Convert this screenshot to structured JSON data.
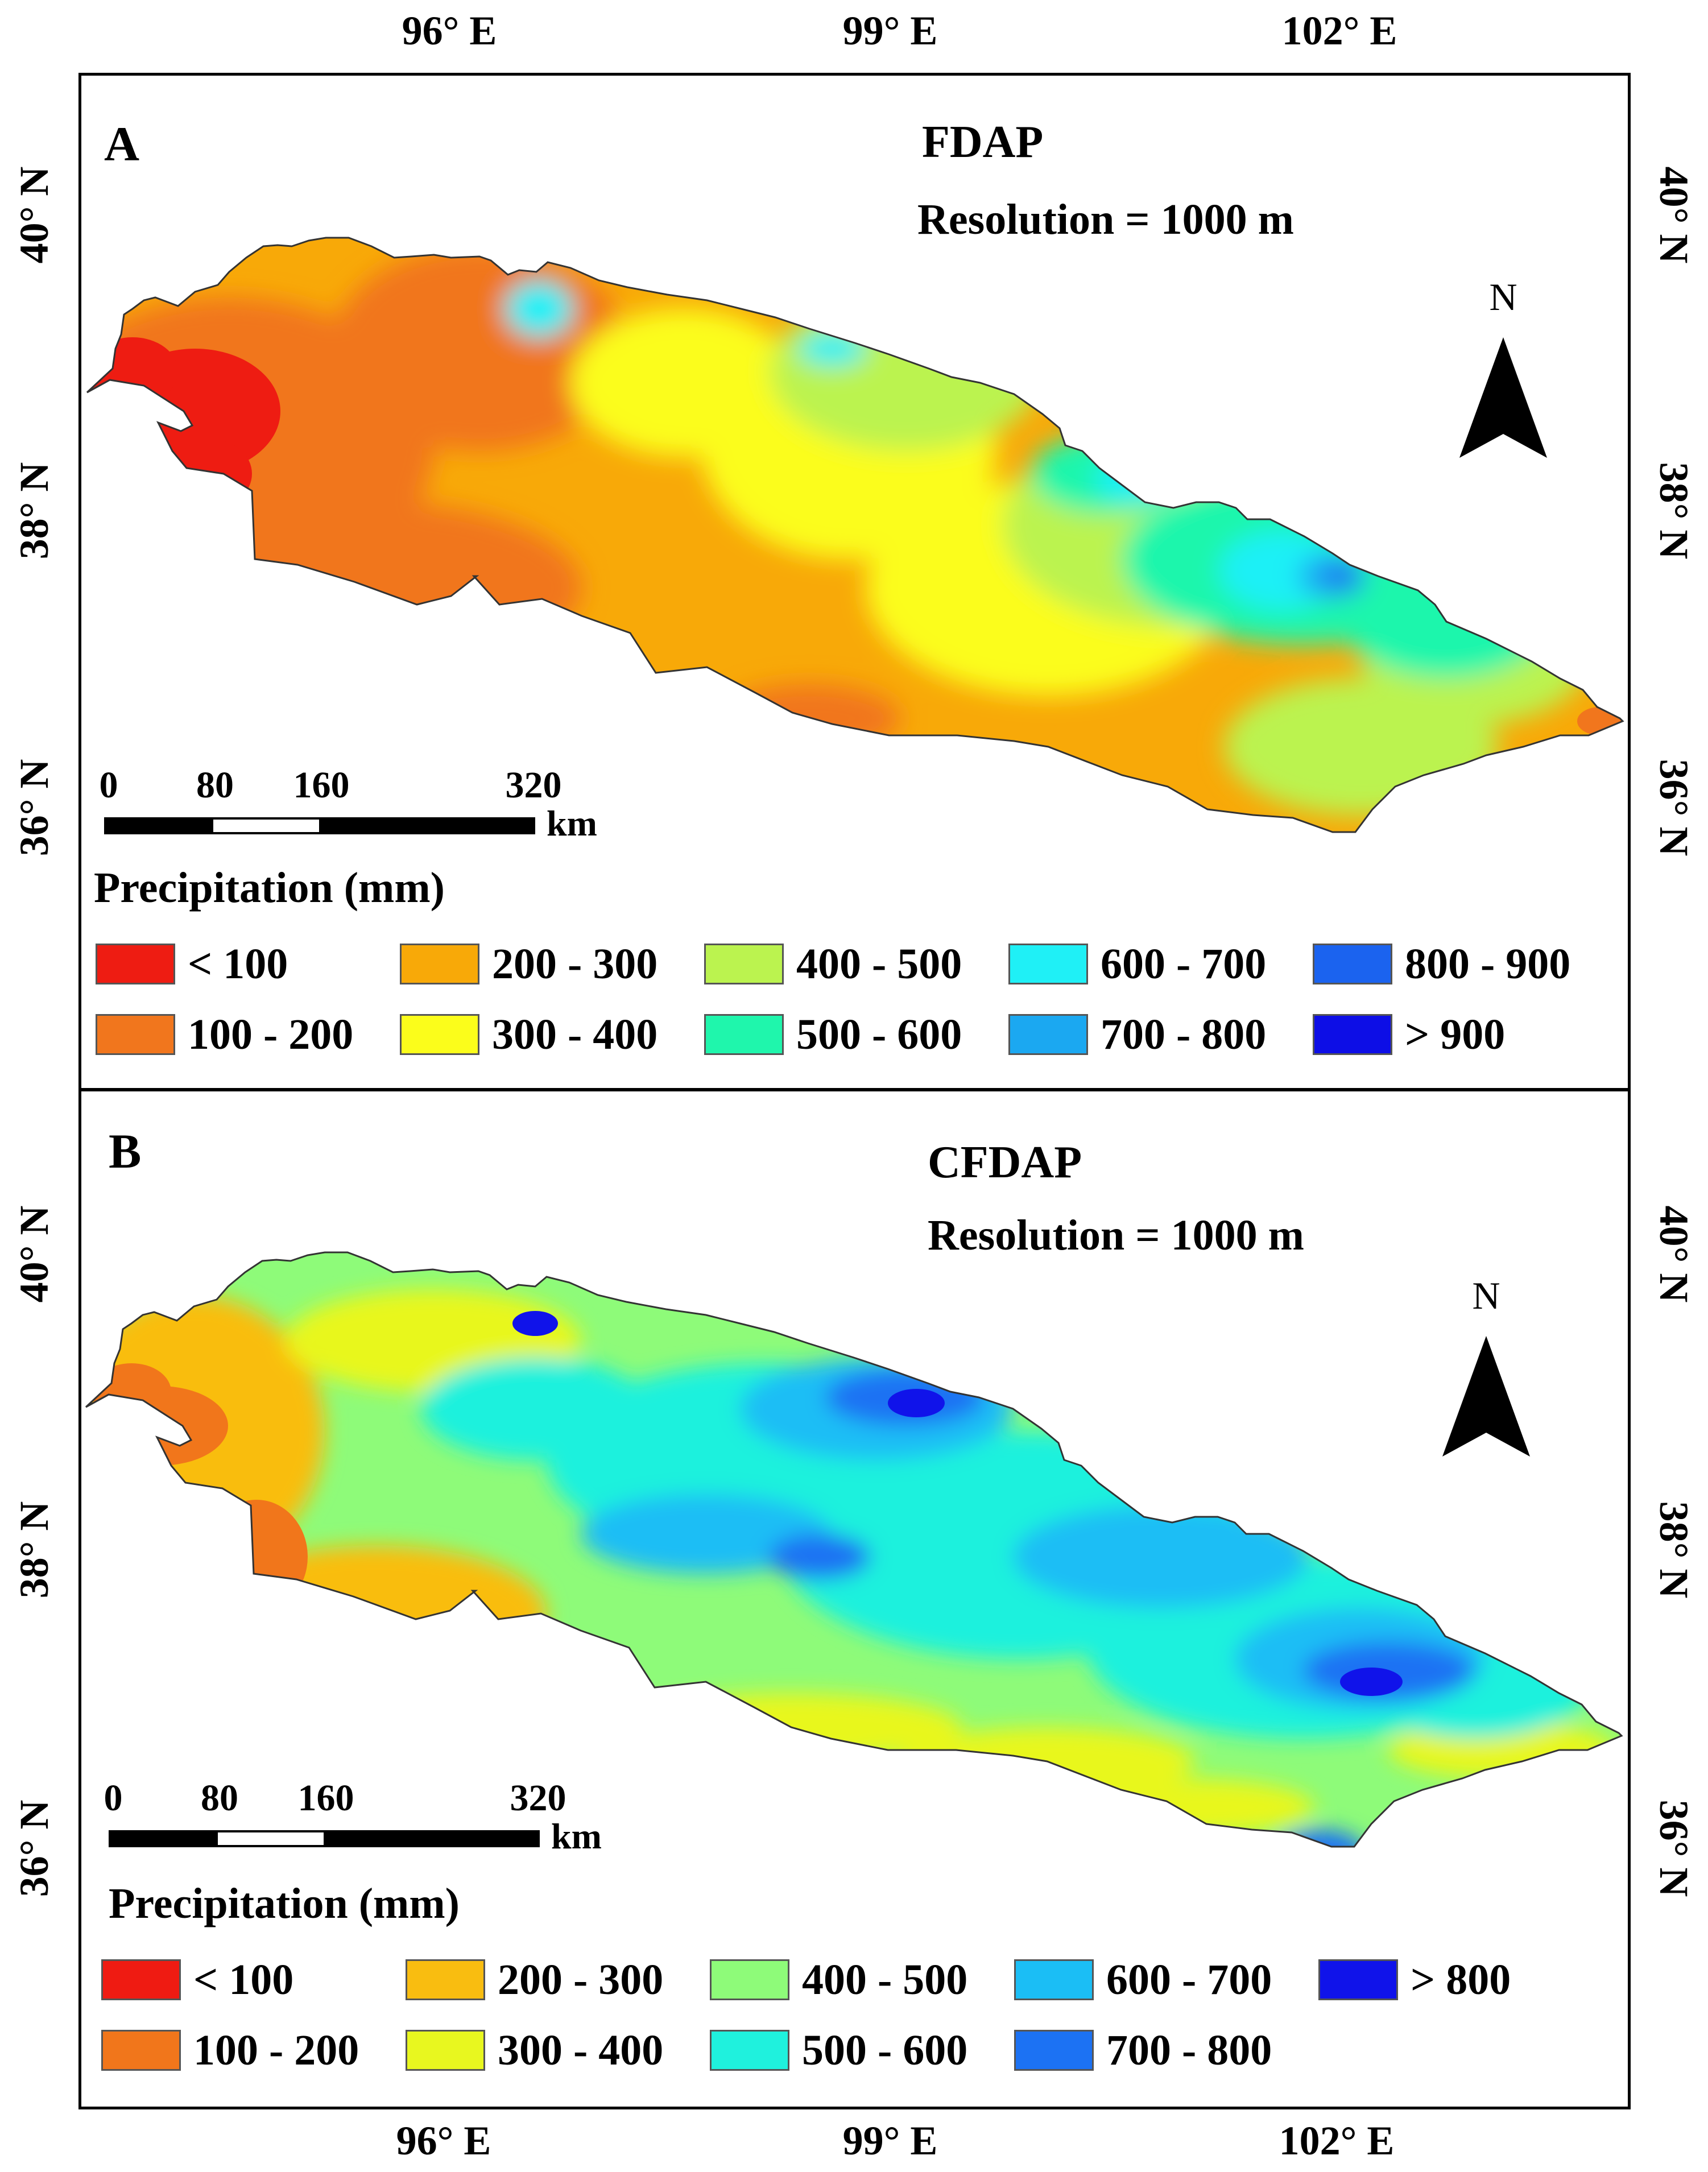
{
  "axes": {
    "lon_ticks": [
      "96° E",
      "99° E",
      "102° E"
    ],
    "lat_ticks_a": [
      "40° N",
      "38° N",
      "36° N"
    ],
    "lat_ticks_b": [
      "40° N",
      "38° N",
      "36° N"
    ]
  },
  "panel_a": {
    "letter": "A",
    "title": "FDAP",
    "resolution": "Resolution = 1000 m",
    "north": "N",
    "scale": {
      "marks": [
        "0",
        "80",
        "160",
        "320"
      ],
      "unit": "km"
    },
    "legend_title": "Precipitation (mm)",
    "legend": [
      {
        "label": "< 100",
        "color": "#ee1c12"
      },
      {
        "label": "200 - 300",
        "color": "#f8a908"
      },
      {
        "label": "400 - 500",
        "color": "#bbf34f"
      },
      {
        "label": "600 - 700",
        "color": "#1ff0f6"
      },
      {
        "label": "800 - 900",
        "color": "#1b63ef"
      },
      {
        "label": "100 - 200",
        "color": "#f1761d"
      },
      {
        "label": "300 - 400",
        "color": "#fbfd1b"
      },
      {
        "label": "500 - 600",
        "color": "#1ff6ac"
      },
      {
        "label": "700 - 800",
        "color": "#1ba8f1"
      },
      {
        "label": "> 900",
        "color": "#0d0ee6"
      }
    ]
  },
  "panel_b": {
    "letter": "B",
    "title": "CFDAP",
    "resolution": "Resolution = 1000 m",
    "north": "N",
    "scale": {
      "marks": [
        "0",
        "80",
        "160",
        "320"
      ],
      "unit": "km"
    },
    "legend_title": "Precipitation (mm)",
    "legend": [
      {
        "label": "< 100",
        "color": "#ef1b12"
      },
      {
        "label": "200 - 300",
        "color": "#f9bd10"
      },
      {
        "label": "400 - 500",
        "color": "#8efb79"
      },
      {
        "label": "600 - 700",
        "color": "#1bbef5"
      },
      {
        "label": "> 800",
        "color": "#1013ea"
      },
      {
        "label": "100 - 200",
        "color": "#f1761b"
      },
      {
        "label": "300 - 400",
        "color": "#e8f71f"
      },
      {
        "label": "500 - 600",
        "color": "#1ff1dd"
      },
      {
        "label": "700 - 800",
        "color": "#1c72f3"
      }
    ]
  }
}
